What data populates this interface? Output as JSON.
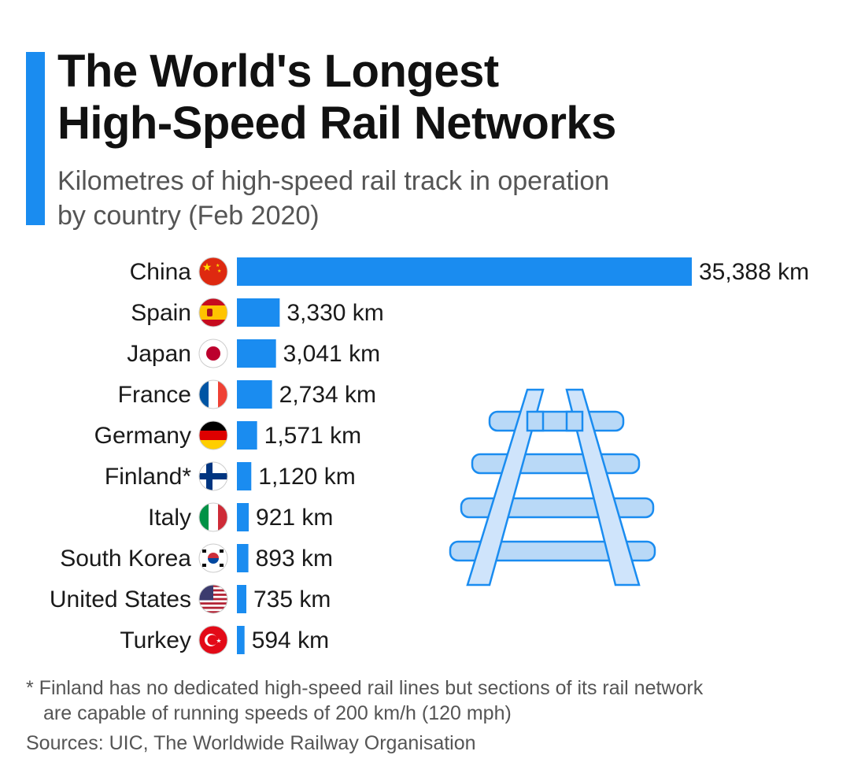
{
  "header": {
    "title_line1": "The World's Longest",
    "title_line2": "High-Speed Rail Networks",
    "subtitle_line1": "Kilometres of high-speed rail track in operation",
    "subtitle_line2": "by country (Feb 2020)"
  },
  "colors": {
    "accent": "#1a8cf0",
    "bar": "#1a8cf0",
    "illustration": "#b9d9f7"
  },
  "chart_data": {
    "type": "bar",
    "orientation": "horizontal",
    "title": "The World's Longest High-Speed Rail Networks",
    "subtitle": "Kilometres of high-speed rail track in operation by country (Feb 2020)",
    "categories": [
      "China",
      "Spain",
      "Japan",
      "France",
      "Germany",
      "Finland*",
      "Italy",
      "South Korea",
      "United States",
      "Turkey"
    ],
    "values": [
      35388,
      3330,
      3041,
      2734,
      1571,
      1120,
      921,
      893,
      735,
      594
    ],
    "value_labels": [
      "35,388 km",
      "3,330 km",
      "3,041 km",
      "2,734 km",
      "1,571 km",
      "1,120 km",
      "921 km",
      "893 km",
      "735 km",
      "594 km"
    ],
    "flag_icons": [
      "china-flag-icon",
      "spain-flag-icon",
      "japan-flag-icon",
      "france-flag-icon",
      "germany-flag-icon",
      "finland-flag-icon",
      "italy-flag-icon",
      "south-korea-flag-icon",
      "united-states-flag-icon",
      "turkey-flag-icon"
    ],
    "unit": "km",
    "xlim": [
      0,
      35388
    ],
    "grid": false,
    "legend": "none"
  },
  "illustration": {
    "icon": "railway-track-icon"
  },
  "footer": {
    "footnote_line1": "* Finland has no dedicated high-speed rail lines but sections of its rail network",
    "footnote_line2": "are capable of running speeds of 200 km/h (120 mph)",
    "sources": "Sources: UIC, The Worldwide Railway Organisation"
  }
}
